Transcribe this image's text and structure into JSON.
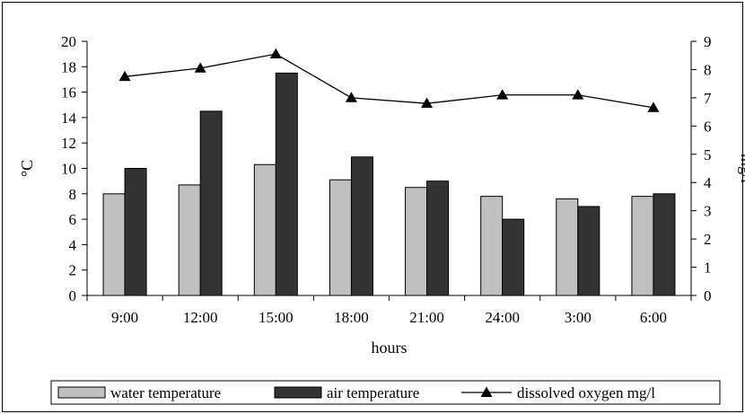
{
  "chart_data": {
    "type": "bar",
    "categories": [
      "9:00",
      "12:00",
      "15:00",
      "18:00",
      "21:00",
      "24:00",
      "3:00",
      "6:00"
    ],
    "xlabel": "hours",
    "ylabel": "°C",
    "y2label": "mg/l",
    "ylim": [
      0,
      20
    ],
    "y2lim": [
      0,
      9
    ],
    "yticks": [
      0,
      2,
      4,
      6,
      8,
      10,
      12,
      14,
      16,
      18,
      20
    ],
    "y2ticks": [
      0,
      1,
      2,
      3,
      4,
      5,
      6,
      7,
      8,
      9
    ],
    "grid": false,
    "legend_position": "bottom",
    "series": [
      {
        "name": "water temperature",
        "kind": "bar",
        "axis": "left",
        "color": "#c0c0c0",
        "values": [
          8.0,
          8.7,
          10.3,
          9.1,
          8.5,
          7.8,
          7.6,
          7.8
        ]
      },
      {
        "name": "air temperature",
        "kind": "bar",
        "axis": "left",
        "color": "#333333",
        "values": [
          10.0,
          14.5,
          17.5,
          10.9,
          9.0,
          6.0,
          7.0,
          8.0
        ]
      },
      {
        "name": "dissolved oxygen mg/l",
        "kind": "line",
        "axis": "right",
        "color": "#000000",
        "marker": "triangle",
        "values": [
          7.75,
          8.05,
          8.55,
          7.0,
          6.8,
          7.1,
          7.1,
          6.65
        ]
      }
    ]
  }
}
